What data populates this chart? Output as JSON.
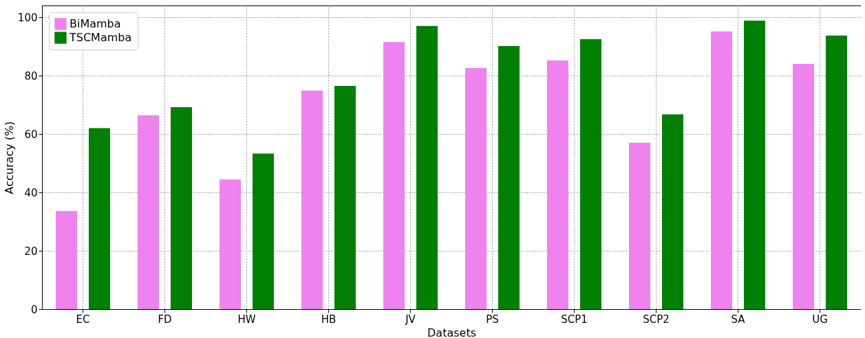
{
  "chart_data": {
    "type": "bar",
    "xlabel": "Datasets",
    "ylabel": "Accuracy (%)",
    "categories": [
      "EC",
      "FD",
      "HW",
      "HB",
      "JV",
      "PS",
      "SCP1",
      "SCP2",
      "SA",
      "UG"
    ],
    "series": [
      {
        "name": "BiMamba",
        "color": "#ee82ee",
        "values": [
          33.6,
          66.4,
          44.4,
          74.9,
          91.5,
          82.6,
          85.2,
          57.0,
          95.1,
          84.0
        ]
      },
      {
        "name": "TSCMamba",
        "color": "#008000",
        "values": [
          62.0,
          69.2,
          53.3,
          76.5,
          97.0,
          90.1,
          92.5,
          66.7,
          98.8,
          93.7
        ]
      }
    ],
    "ylim": [
      0,
      104
    ],
    "yticks": [
      0,
      20,
      40,
      60,
      80,
      100
    ],
    "grid": true,
    "legend": "top left"
  }
}
